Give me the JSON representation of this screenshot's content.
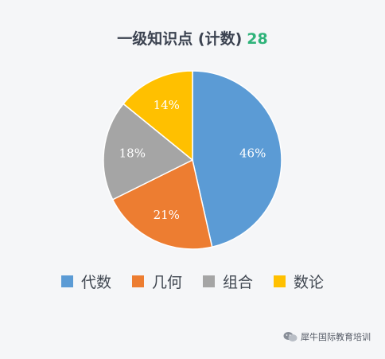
{
  "title": {
    "text": "一级知识点 (计数)",
    "count": "28"
  },
  "chart_data": {
    "type": "pie",
    "title": "一级知识点 (计数) 28",
    "categories": [
      "代数",
      "几何",
      "组合",
      "数论"
    ],
    "values": [
      46,
      21,
      18,
      14
    ],
    "labels": [
      "46%",
      "21%",
      "18%",
      "14%"
    ],
    "colors": [
      "#5b9bd5",
      "#ed7d31",
      "#a5a5a5",
      "#ffc000"
    ],
    "legend_position": "bottom"
  },
  "legend": {
    "items": [
      {
        "label": "代数",
        "color": "#5b9bd5"
      },
      {
        "label": "几何",
        "color": "#ed7d31"
      },
      {
        "label": "组合",
        "color": "#a5a5a5"
      },
      {
        "label": "数论",
        "color": "#ffc000"
      }
    ]
  },
  "watermark": {
    "text": "犀牛国际教育培训",
    "icon": "wechat-icon"
  }
}
